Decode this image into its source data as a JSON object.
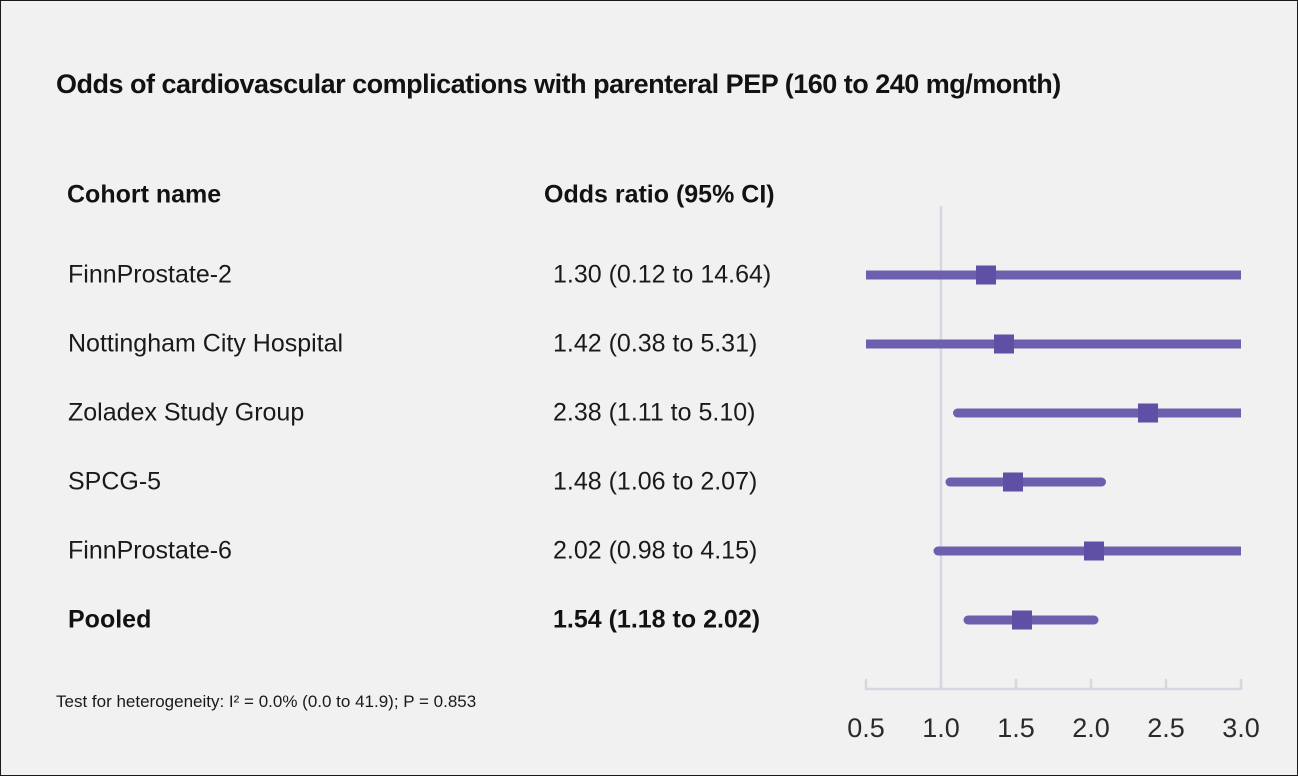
{
  "title": "Odds of cardiovascular complications with parenteral PEP (160 to 240 mg/month)",
  "table": {
    "cohort_header": "Cohort name",
    "or_header": "Odds ratio (95% CI)"
  },
  "footnote": "Test for heterogeneity: I² = 0.0% (0.0 to 41.9); P = 0.853",
  "chart_data": {
    "type": "scatter",
    "subtype": "forest-plot",
    "title": "Odds of cardiovascular complications with parenteral PEP (160 to 240 mg/month)",
    "xlabel": "",
    "ylabel": "",
    "xlim": [
      0.5,
      3.0
    ],
    "x_ticks": [
      "0.5",
      "1.0",
      "1.5",
      "2.0",
      "2.5",
      "3.0"
    ],
    "reference_line_x": 1.0,
    "grid": false,
    "legend_position": "none",
    "series": [
      {
        "name": "FinnProstate-2",
        "or_text": "1.30 (0.12 to 14.64)",
        "estimate": 1.3,
        "ci_low": 0.12,
        "ci_high": 14.64,
        "pooled": false
      },
      {
        "name": "Nottingham City Hospital",
        "or_text": "1.42 (0.38 to 5.31)",
        "estimate": 1.42,
        "ci_low": 0.38,
        "ci_high": 5.31,
        "pooled": false
      },
      {
        "name": "Zoladex Study Group",
        "or_text": "2.38 (1.11 to 5.10)",
        "estimate": 2.38,
        "ci_low": 1.11,
        "ci_high": 5.1,
        "pooled": false
      },
      {
        "name": "SPCG-5",
        "or_text": "1.48 (1.06 to 2.07)",
        "estimate": 1.48,
        "ci_low": 1.06,
        "ci_high": 2.07,
        "pooled": false
      },
      {
        "name": "FinnProstate-6",
        "or_text": "2.02 (0.98 to 4.15)",
        "estimate": 2.02,
        "ci_low": 0.98,
        "ci_high": 4.15,
        "pooled": false
      },
      {
        "name": "Pooled",
        "or_text": "1.54 (1.18 to 2.02)",
        "estimate": 1.54,
        "ci_low": 1.18,
        "ci_high": 2.02,
        "pooled": true
      }
    ],
    "colors": {
      "ci_line": "#6d5fae",
      "marker": "#5f50a5",
      "axis": "#d4d8e1",
      "background": "#f2f1f1",
      "text": "#1a1a1a"
    }
  }
}
